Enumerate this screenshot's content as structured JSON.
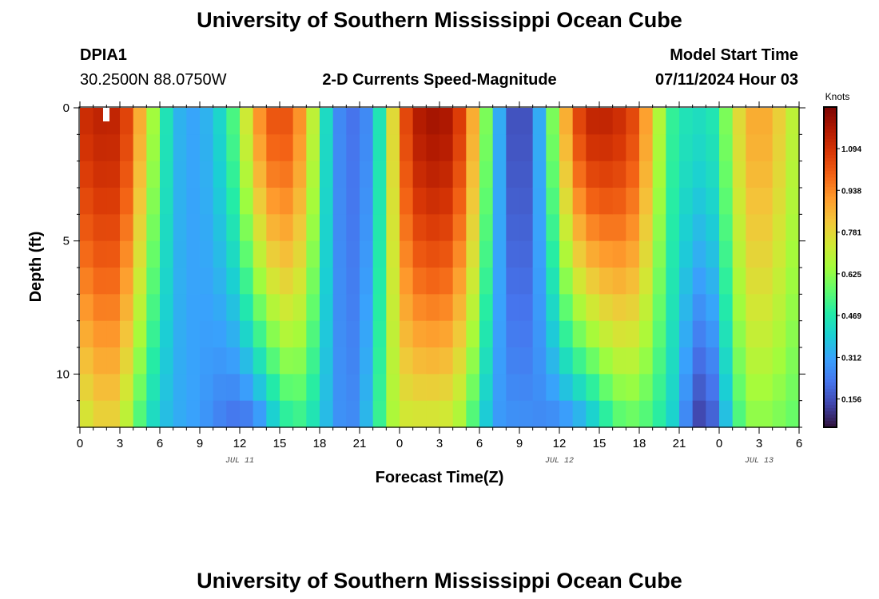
{
  "header": {
    "title": "University of Southern Mississippi Ocean Cube",
    "station_id": "DPIA1",
    "station_coords": "30.2500N  88.0750W",
    "plot_title": "2-D Currents Speed-Magnitude",
    "model_start_label": "Model Start Time",
    "model_start_value": "07/11/2024 Hour 03"
  },
  "footer": {
    "title": "University of Southern Mississippi Ocean Cube"
  },
  "colors": {
    "stops": [
      "#30123b",
      "#4145ab",
      "#4675ed",
      "#39a2fc",
      "#1bcfd4",
      "#24eca6",
      "#61fc6c",
      "#a4fc3b",
      "#d1e834",
      "#f3c63a",
      "#fe9b2d",
      "#f36315",
      "#d93806",
      "#b11901",
      "#7a0402"
    ]
  },
  "chart_data": {
    "type": "heatmap",
    "title": "2-D Currents Speed-Magnitude",
    "xlabel": "Forecast Time(Z)",
    "ylabel": "Depth (ft)",
    "x_tick_labels": [
      "0",
      "3",
      "6",
      "9",
      "12",
      "15",
      "18",
      "21",
      "0",
      "3",
      "6",
      "9",
      "12",
      "15",
      "18",
      "21",
      "0",
      "3",
      "6"
    ],
    "x_range_hours": [
      0,
      54
    ],
    "date_labels": [
      {
        "text": "JUL 11",
        "hour": 12
      },
      {
        "text": "JUL 12",
        "hour": 36
      },
      {
        "text": "JUL 13",
        "hour": 51
      }
    ],
    "y_ticks": [
      0,
      5,
      10
    ],
    "y_tick_labels": [
      "0",
      "5",
      "10"
    ],
    "ylim": [
      0,
      12
    ],
    "colorbar": {
      "unit": "Knots",
      "tick_values": [
        1.094,
        0.938,
        0.781,
        0.625,
        0.469,
        0.312,
        0.156
      ],
      "tick_labels": [
        "1.094",
        "0.938",
        "0.781",
        "0.625",
        "0.469",
        "0.312",
        "0.156"
      ],
      "range": [
        0.05,
        1.25
      ]
    },
    "depth_levels_ft": [
      0.5,
      1.5,
      2.5,
      3.5,
      4.5,
      5.5,
      6.5,
      7.5,
      8.5,
      9.5,
      10.5,
      11.5
    ],
    "speed_profile": {
      "hours": [
        0,
        2,
        3,
        4,
        5,
        6,
        7,
        9,
        11,
        12,
        13,
        14,
        15,
        16,
        17,
        18,
        19,
        20,
        21,
        22,
        23,
        24,
        25,
        27,
        28,
        29,
        30,
        31,
        32,
        33,
        34,
        35,
        36,
        37,
        38,
        39,
        40,
        41,
        42,
        43,
        44,
        45,
        46,
        47,
        48,
        49,
        50,
        51,
        52,
        53,
        54
      ],
      "surface_knots": [
        1.1,
        1.15,
        1.12,
        1.0,
        0.75,
        0.55,
        0.35,
        0.3,
        0.45,
        0.62,
        0.85,
        1.0,
        1.05,
        1.0,
        0.85,
        0.55,
        0.3,
        0.22,
        0.22,
        0.3,
        0.6,
        0.95,
        1.15,
        1.2,
        1.15,
        1.0,
        0.75,
        0.45,
        0.2,
        0.12,
        0.2,
        0.45,
        0.75,
        1.0,
        1.12,
        1.15,
        1.12,
        1.1,
        1.0,
        0.8,
        0.55,
        0.45,
        0.45,
        0.42,
        0.5,
        0.7,
        0.85,
        0.9,
        0.85,
        0.75,
        0.65
      ],
      "bottom_knots": [
        0.7,
        0.8,
        0.75,
        0.6,
        0.45,
        0.38,
        0.33,
        0.3,
        0.22,
        0.2,
        0.22,
        0.3,
        0.42,
        0.5,
        0.48,
        0.4,
        0.3,
        0.25,
        0.28,
        0.42,
        0.6,
        0.72,
        0.72,
        0.72,
        0.7,
        0.6,
        0.45,
        0.3,
        0.28,
        0.28,
        0.27,
        0.25,
        0.25,
        0.28,
        0.32,
        0.4,
        0.5,
        0.55,
        0.55,
        0.5,
        0.45,
        0.35,
        0.15,
        0.1,
        0.25,
        0.45,
        0.6,
        0.62,
        0.6,
        0.58,
        0.55
      ]
    }
  }
}
